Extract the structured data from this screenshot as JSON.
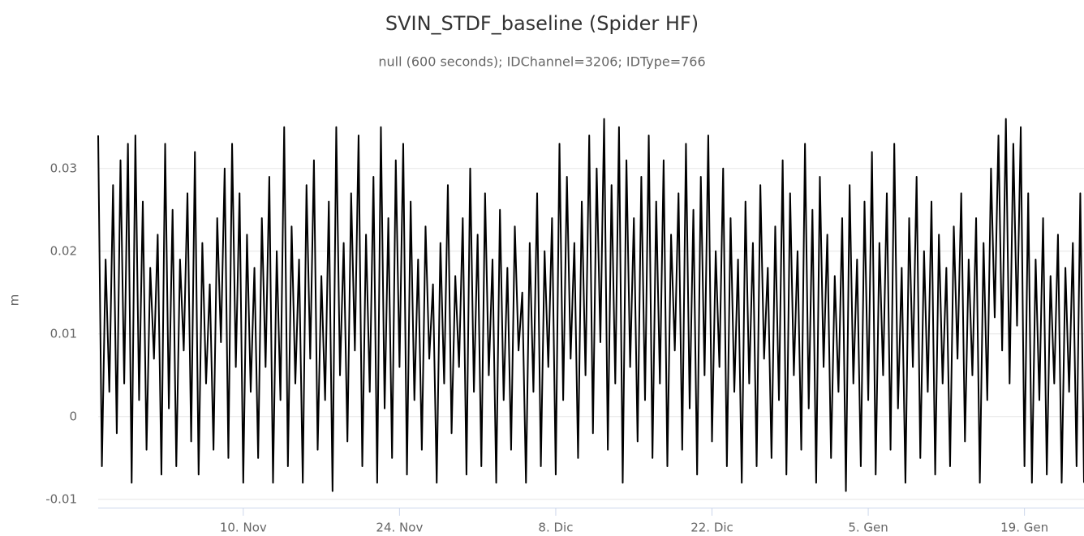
{
  "chart_data": {
    "type": "line",
    "title": "SVIN_STDF_baseline (Spider HF)",
    "subtitle": "null (600 seconds); IDChannel=3206; IDType=766",
    "y_label": "m",
    "color": "#000000",
    "ylim": [
      -0.011,
      0.039
    ],
    "yticks": [
      -0.01,
      0,
      0.01,
      0.02,
      0.03
    ],
    "grid": true,
    "categories": [
      null,
      null,
      null,
      null,
      null,
      null,
      null,
      null,
      null,
      null,
      null,
      null,
      null,
      null,
      null,
      null,
      null,
      null,
      null,
      null,
      null,
      null,
      null,
      null,
      null,
      null,
      null,
      null,
      null,
      null,
      null,
      null,
      null,
      null,
      null,
      null,
      null,
      null,
      null,
      "10. Nov",
      null,
      null,
      null,
      null,
      null,
      null,
      null,
      null,
      null,
      null,
      null,
      null,
      null,
      null,
      null,
      null,
      null,
      null,
      null,
      null,
      null,
      null,
      null,
      null,
      null,
      null,
      null,
      null,
      null,
      null,
      null,
      null,
      null,
      null,
      null,
      null,
      null,
      null,
      null,
      null,
      null,
      "24. Nov",
      null,
      null,
      null,
      null,
      null,
      null,
      null,
      null,
      null,
      null,
      null,
      null,
      null,
      null,
      null,
      null,
      null,
      null,
      null,
      null,
      null,
      null,
      null,
      null,
      null,
      null,
      null,
      null,
      null,
      null,
      null,
      null,
      null,
      null,
      null,
      null,
      null,
      null,
      null,
      null,
      null,
      "8. Dic",
      null,
      null,
      null,
      null,
      null,
      null,
      null,
      null,
      null,
      null,
      null,
      null,
      null,
      null,
      null,
      null,
      null,
      null,
      null,
      null,
      null,
      null,
      null,
      null,
      null,
      null,
      null,
      null,
      null,
      null,
      null,
      null,
      null,
      null,
      null,
      null,
      null,
      null,
      null,
      null,
      null,
      "22. Dic",
      null,
      null,
      null,
      null,
      null,
      null,
      null,
      null,
      null,
      null,
      null,
      null,
      null,
      null,
      null,
      null,
      null,
      null,
      null,
      null,
      null,
      null,
      null,
      null,
      null,
      null,
      null,
      null,
      null,
      null,
      null,
      null,
      null,
      null,
      null,
      null,
      null,
      null,
      null,
      null,
      null,
      "5. Gen",
      null,
      null,
      null,
      null,
      null,
      null,
      null,
      null,
      null,
      null,
      null,
      null,
      null,
      null,
      null,
      null,
      null,
      null,
      null,
      null,
      null,
      null,
      null,
      null,
      null,
      null,
      null,
      null,
      null,
      null,
      null,
      null,
      null,
      null,
      null,
      null,
      null,
      null,
      null,
      null,
      null,
      "19. Gen",
      null,
      null,
      null,
      null,
      null,
      null,
      null,
      null,
      null,
      null,
      null,
      null,
      null,
      null,
      null,
      null
    ],
    "values": [
      0.034,
      -0.006,
      0.019,
      0.003,
      0.028,
      -0.002,
      0.031,
      0.004,
      0.033,
      -0.008,
      0.034,
      0.002,
      0.026,
      -0.004,
      0.018,
      0.007,
      0.022,
      -0.007,
      0.033,
      0.001,
      0.025,
      -0.006,
      0.019,
      0.008,
      0.027,
      -0.003,
      0.032,
      -0.007,
      0.021,
      0.004,
      0.016,
      -0.004,
      0.024,
      0.009,
      0.03,
      -0.005,
      0.033,
      0.006,
      0.027,
      -0.008,
      0.022,
      0.003,
      0.018,
      -0.005,
      0.024,
      0.006,
      0.029,
      -0.008,
      0.02,
      0.002,
      0.035,
      -0.006,
      0.023,
      0.004,
      0.019,
      -0.008,
      0.028,
      0.007,
      0.031,
      -0.004,
      0.017,
      0.002,
      0.026,
      -0.009,
      0.035,
      0.005,
      0.021,
      -0.003,
      0.027,
      0.008,
      0.034,
      -0.006,
      0.022,
      0.003,
      0.029,
      -0.008,
      0.035,
      0.001,
      0.024,
      -0.005,
      0.031,
      0.006,
      0.033,
      -0.007,
      0.026,
      0.002,
      0.019,
      -0.004,
      0.023,
      0.007,
      0.016,
      -0.008,
      0.021,
      0.004,
      0.028,
      -0.002,
      0.017,
      0.006,
      0.024,
      -0.007,
      0.03,
      0.003,
      0.022,
      -0.006,
      0.027,
      0.005,
      0.019,
      -0.008,
      0.025,
      0.002,
      0.018,
      -0.004,
      0.023,
      0.008,
      0.015,
      -0.008,
      0.021,
      0.003,
      0.027,
      -0.006,
      0.02,
      0.006,
      0.024,
      -0.007,
      0.033,
      0.002,
      0.029,
      0.007,
      0.021,
      -0.005,
      0.026,
      0.005,
      0.034,
      -0.002,
      0.03,
      0.009,
      0.036,
      -0.004,
      0.028,
      0.004,
      0.035,
      -0.008,
      0.031,
      0.006,
      0.024,
      -0.003,
      0.029,
      0.002,
      0.034,
      -0.005,
      0.026,
      0.004,
      0.031,
      -0.006,
      0.022,
      0.008,
      0.027,
      -0.004,
      0.033,
      0.001,
      0.025,
      -0.007,
      0.029,
      0.005,
      0.034,
      -0.003,
      0.02,
      0.006,
      0.03,
      -0.006,
      0.024,
      0.003,
      0.019,
      -0.008,
      0.026,
      0.004,
      0.021,
      -0.006,
      0.028,
      0.007,
      0.018,
      -0.005,
      0.023,
      0.002,
      0.031,
      -0.007,
      0.027,
      0.005,
      0.02,
      -0.004,
      0.033,
      0.001,
      0.025,
      -0.008,
      0.029,
      0.006,
      0.022,
      -0.005,
      0.017,
      0.003,
      0.024,
      -0.009,
      0.028,
      0.004,
      0.019,
      -0.006,
      0.026,
      0.002,
      0.032,
      -0.007,
      0.021,
      0.005,
      0.027,
      -0.004,
      0.033,
      0.001,
      0.018,
      -0.008,
      0.024,
      0.006,
      0.029,
      -0.005,
      0.02,
      0.003,
      0.026,
      -0.007,
      0.022,
      0.004,
      0.018,
      -0.006,
      0.023,
      0.007,
      0.027,
      -0.003,
      0.019,
      0.005,
      0.024,
      -0.008,
      0.021,
      0.002,
      0.03,
      0.012,
      0.034,
      0.008,
      0.036,
      0.004,
      0.033,
      0.011,
      0.035,
      -0.006,
      0.027,
      -0.008,
      0.019,
      0.002,
      0.024,
      -0.007,
      0.017,
      0.004,
      0.022,
      -0.008,
      0.018,
      0.003,
      0.021,
      -0.006,
      0.027,
      -0.008
    ]
  }
}
